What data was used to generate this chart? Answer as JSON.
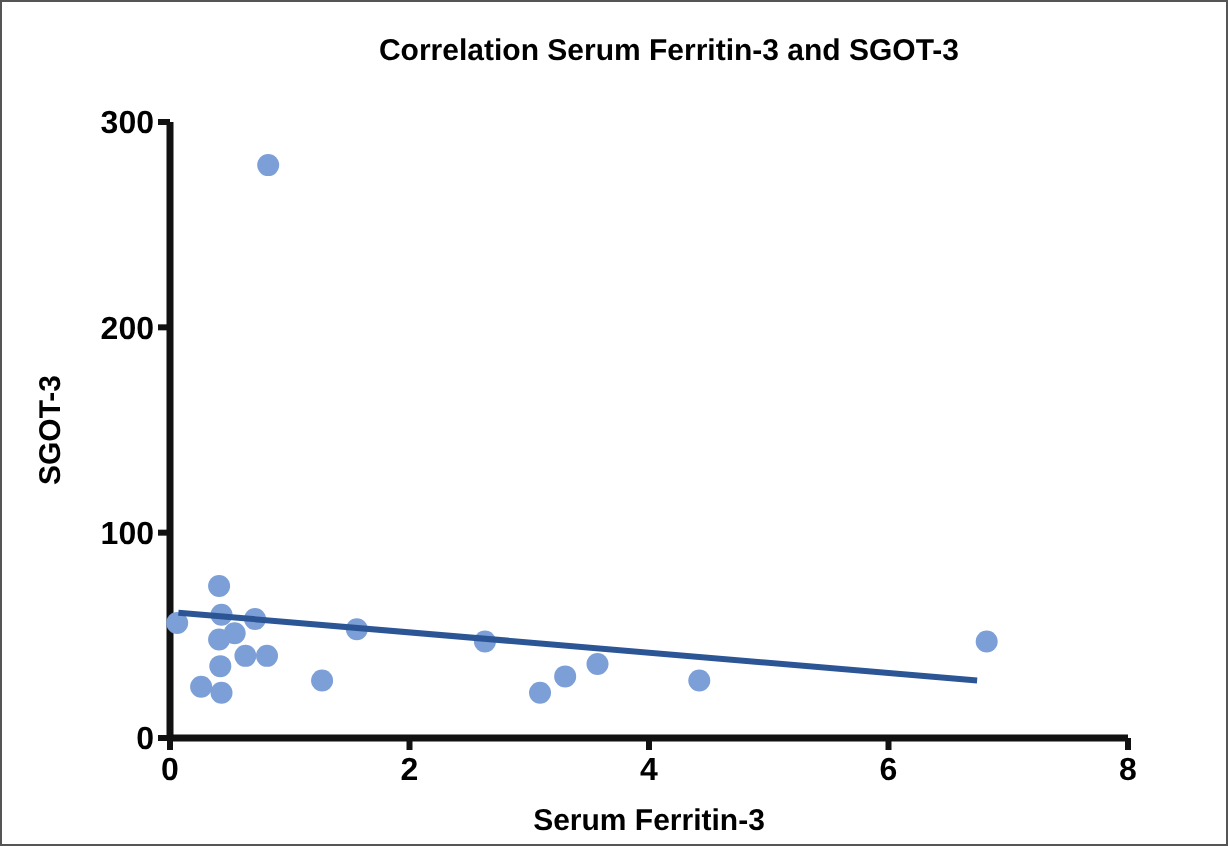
{
  "chart_data": {
    "type": "scatter",
    "title": "Correlation Serum Ferritin-3 and SGOT-3",
    "xlabel": "Serum Ferritin-3",
    "ylabel": "SGOT-3",
    "xlim": [
      0,
      8
    ],
    "xticks": [
      0,
      2,
      4,
      6,
      8
    ],
    "ylim": [
      0,
      300
    ],
    "yticks": [
      0,
      100,
      200,
      300
    ],
    "grid": false,
    "series": [
      {
        "color": "#7b9fd6",
        "marker": "circle",
        "x": [
          0.82,
          0.41,
          0.06,
          0.43,
          0.71,
          0.54,
          0.41,
          1.56,
          2.63,
          0.63,
          0.81,
          0.42,
          0.26,
          0.43,
          1.27,
          3.09,
          3.3,
          3.57,
          4.42,
          6.82
        ],
        "values": [
          279,
          74,
          56,
          60,
          58,
          51,
          48,
          53,
          47,
          40,
          40,
          35,
          25,
          22,
          28,
          22,
          30,
          36,
          28,
          47
        ]
      },
      {
        "type": "line",
        "color": "#2b5595",
        "x": [
          0.07,
          6.74
        ],
        "values": [
          61,
          28
        ]
      }
    ]
  }
}
